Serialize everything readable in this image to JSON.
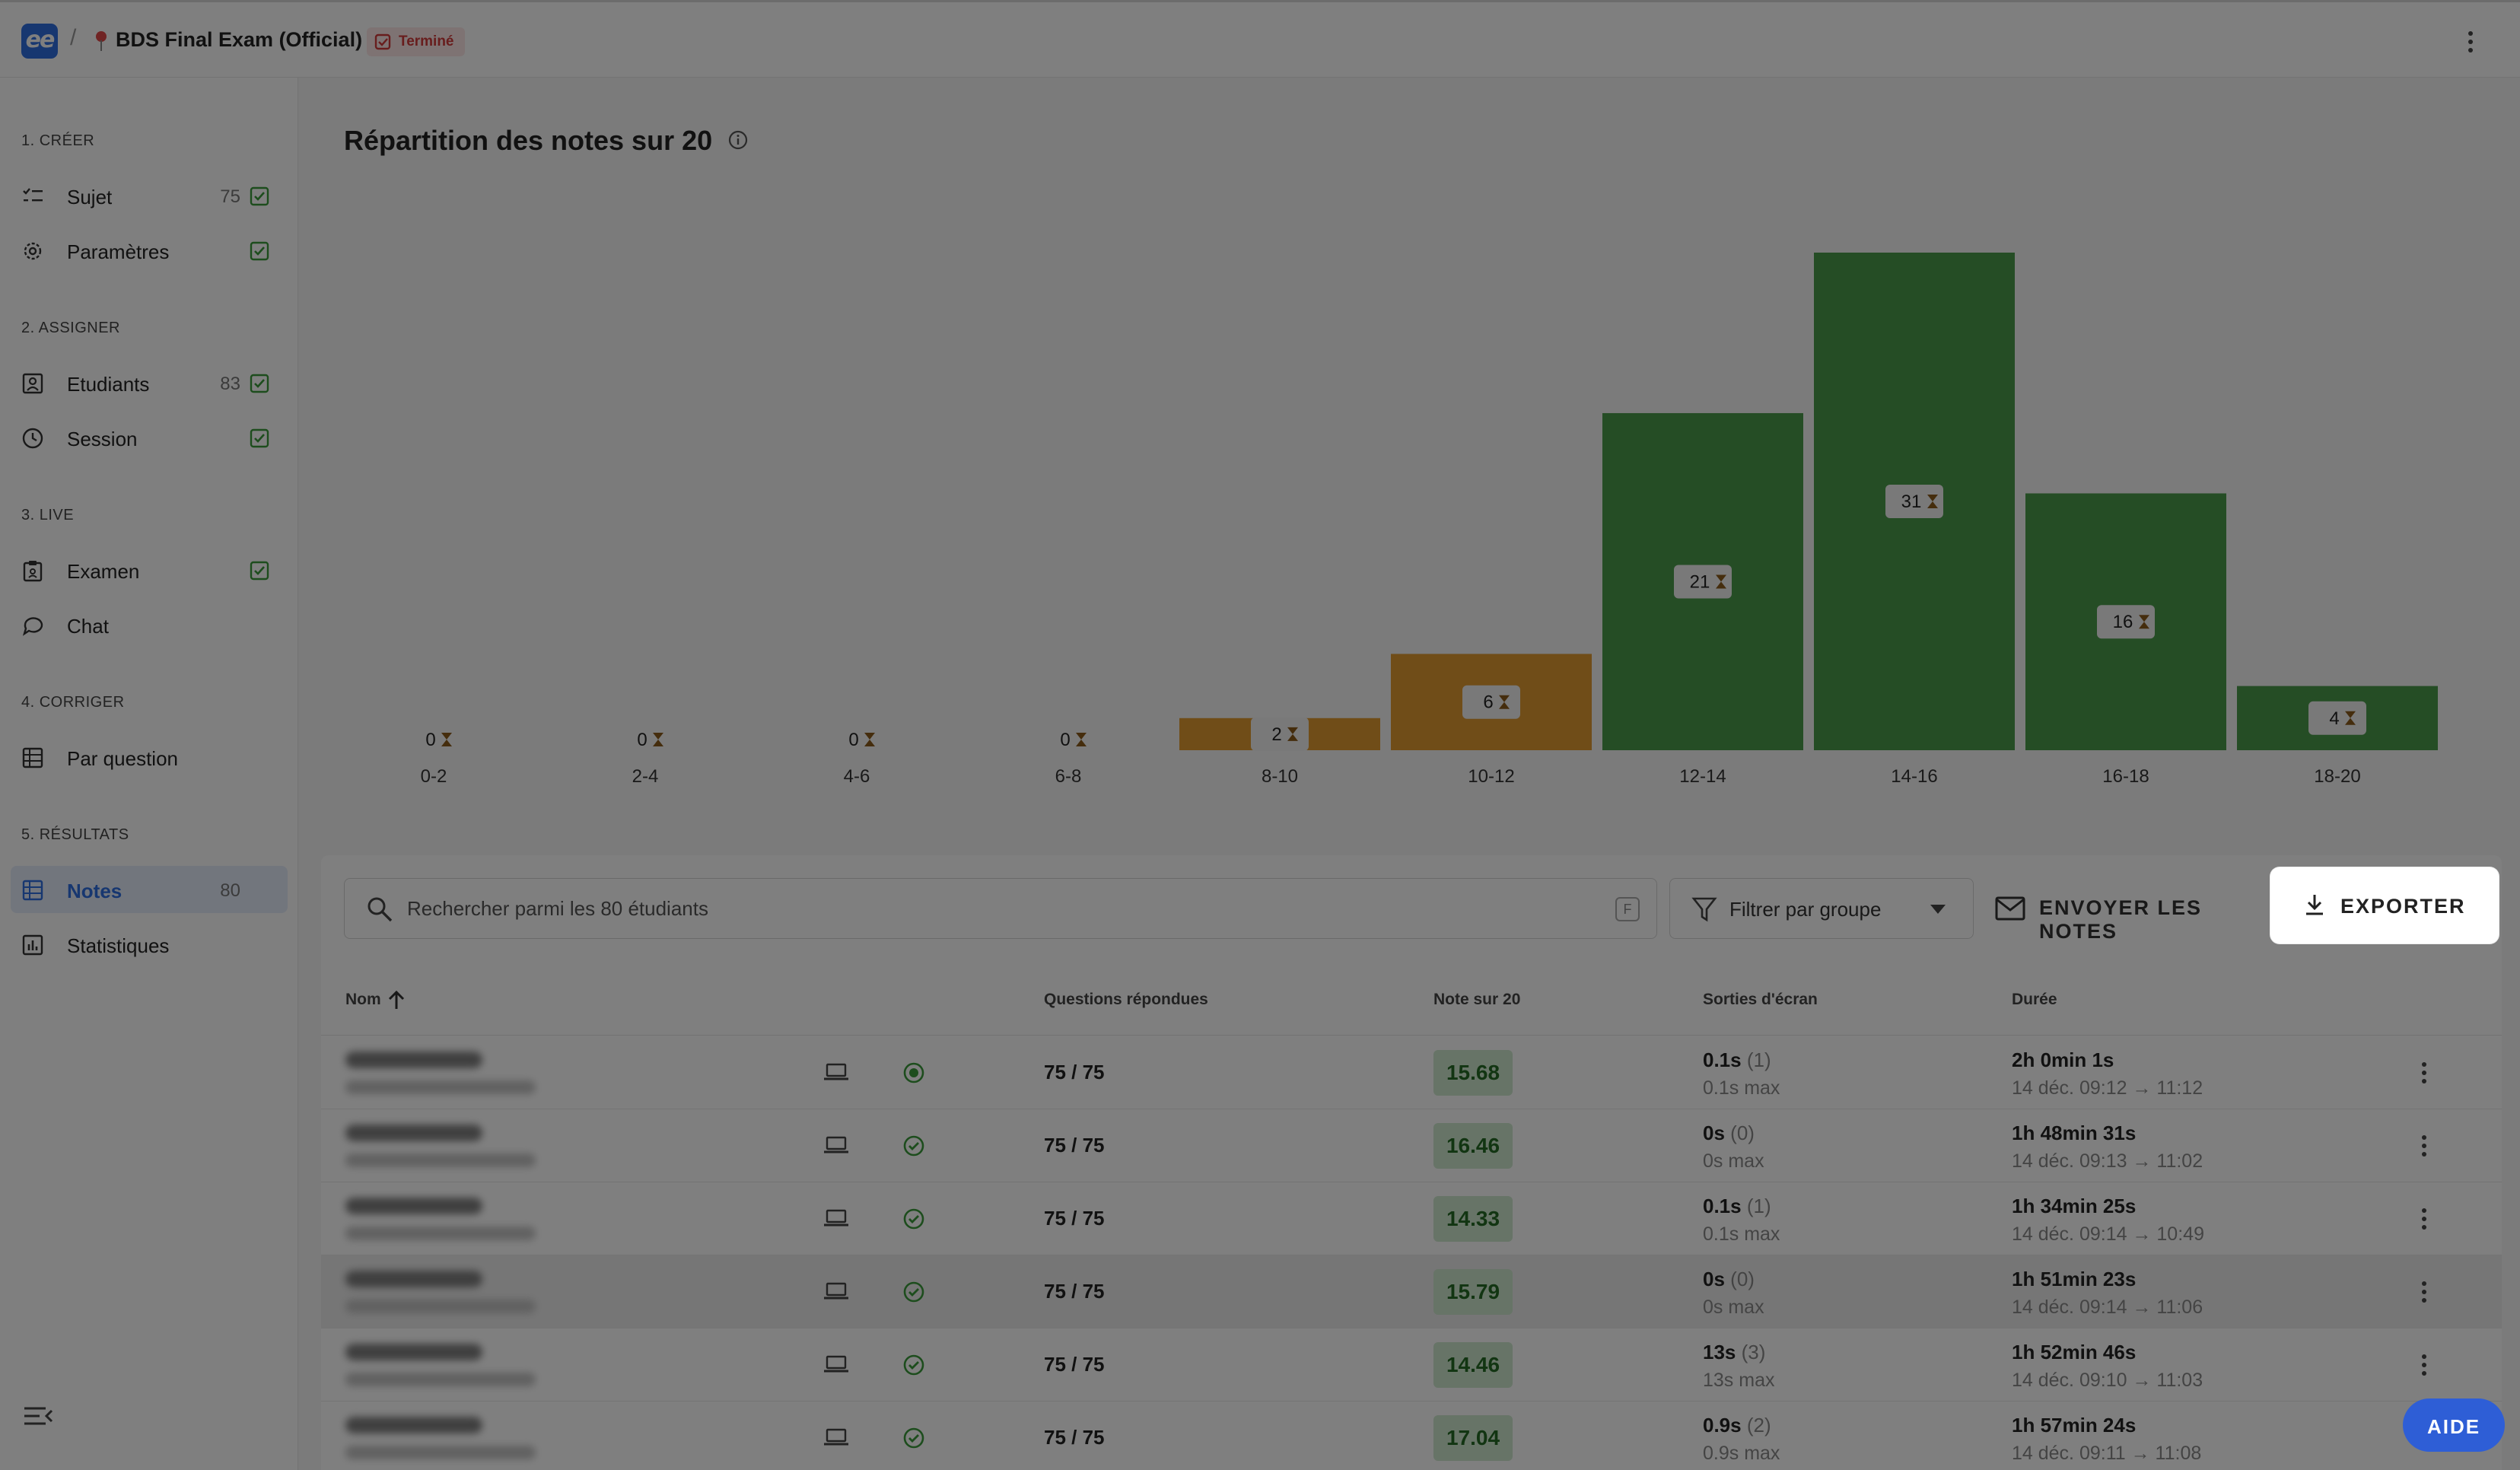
{
  "header": {
    "logo_text": "ee",
    "separator": "/",
    "exam_title": "BDS Final Exam (Official)",
    "status": "Terminé",
    "status_color": "#d03b3b",
    "accent_color": "#2f6fe0"
  },
  "sidebar": {
    "sections": [
      {
        "label": "1. CRÉER",
        "items": [
          {
            "label": "Sujet",
            "count": "75",
            "checked": true,
            "icon": "list-icon"
          },
          {
            "label": "Paramètres",
            "count": "",
            "checked": true,
            "icon": "gear-icon"
          }
        ]
      },
      {
        "label": "2. ASSIGNER",
        "items": [
          {
            "label": "Etudiants",
            "count": "83",
            "checked": true,
            "icon": "student-icon"
          },
          {
            "label": "Session",
            "count": "",
            "checked": true,
            "icon": "clock-icon"
          }
        ]
      },
      {
        "label": "3. LIVE",
        "items": [
          {
            "label": "Examen",
            "count": "",
            "checked": true,
            "icon": "clipboard-icon"
          },
          {
            "label": "Chat",
            "count": "",
            "checked": false,
            "icon": "chat-icon"
          }
        ]
      },
      {
        "label": "4. CORRIGER",
        "items": [
          {
            "label": "Par question",
            "count": "",
            "checked": false,
            "icon": "grid-icon"
          }
        ]
      },
      {
        "label": "5. RÉSULTATS",
        "items": [
          {
            "label": "Notes",
            "count": "80",
            "checked": false,
            "icon": "table-icon",
            "active": true
          },
          {
            "label": "Statistiques",
            "count": "",
            "checked": false,
            "icon": "bar-chart-icon"
          }
        ]
      }
    ]
  },
  "chart_data": {
    "type": "bar",
    "title": "Répartition des notes sur 20",
    "categories": [
      "0-2",
      "2-4",
      "4-6",
      "6-8",
      "8-10",
      "10-12",
      "12-14",
      "14-16",
      "16-18",
      "18-20"
    ],
    "values": [
      0,
      0,
      0,
      0,
      2,
      6,
      21,
      31,
      16,
      4
    ],
    "colors": [
      "#e09a30",
      "#e09a30",
      "#e09a30",
      "#e09a30",
      "#e09a30",
      "#e09a30",
      "#4a9a4a",
      "#4a9a4a",
      "#4a9a4a",
      "#4a9a4a"
    ],
    "ylim": [
      0,
      31
    ],
    "grid": false,
    "legend": "none"
  },
  "toolbar": {
    "search_placeholder": "Rechercher parmi les 80 étudiants",
    "search_shortcut": "F",
    "filter_label": "Filtrer par groupe",
    "send_label": "ENVOYER LES NOTES",
    "export_label": "EXPORTER"
  },
  "table": {
    "headers": {
      "name": "Nom",
      "questions": "Questions répondues",
      "grade": "Note sur 20",
      "exits": "Sorties d'écran",
      "duration": "Durée"
    },
    "rows": [
      {
        "questions": "75 / 75",
        "grade": "15.68",
        "exit_time": "0.1s",
        "exit_count": "(1)",
        "exit_max": "0.1s max",
        "duration": "2h 0min 1s",
        "range": "14 déc. 09:12 → 11:12",
        "status": "flag"
      },
      {
        "questions": "75 / 75",
        "grade": "16.46",
        "exit_time": "0s",
        "exit_count": "(0)",
        "exit_max": "0s max",
        "duration": "1h 48min 31s",
        "range": "14 déc. 09:13 → 11:02",
        "status": "check"
      },
      {
        "questions": "75 / 75",
        "grade": "14.33",
        "exit_time": "0.1s",
        "exit_count": "(1)",
        "exit_max": "0.1s max",
        "duration": "1h 34min 25s",
        "range": "14 déc. 09:14 → 10:49",
        "status": "check"
      },
      {
        "questions": "75 / 75",
        "grade": "15.79",
        "exit_time": "0s",
        "exit_count": "(0)",
        "exit_max": "0s max",
        "duration": "1h 51min 23s",
        "range": "14 déc. 09:14 → 11:06",
        "status": "check",
        "highlight": true
      },
      {
        "questions": "75 / 75",
        "grade": "14.46",
        "exit_time": "13s",
        "exit_count": "(3)",
        "exit_max": "13s max",
        "duration": "1h 52min 46s",
        "range": "14 déc. 09:10 → 11:03",
        "status": "check"
      },
      {
        "questions": "75 / 75",
        "grade": "17.04",
        "exit_time": "0.9s",
        "exit_count": "(2)",
        "exit_max": "0.9s max",
        "duration": "1h 57min 24s",
        "range": "14 déc. 09:11 → 11:08",
        "status": "check"
      }
    ]
  },
  "help": {
    "label": "AIDE"
  }
}
